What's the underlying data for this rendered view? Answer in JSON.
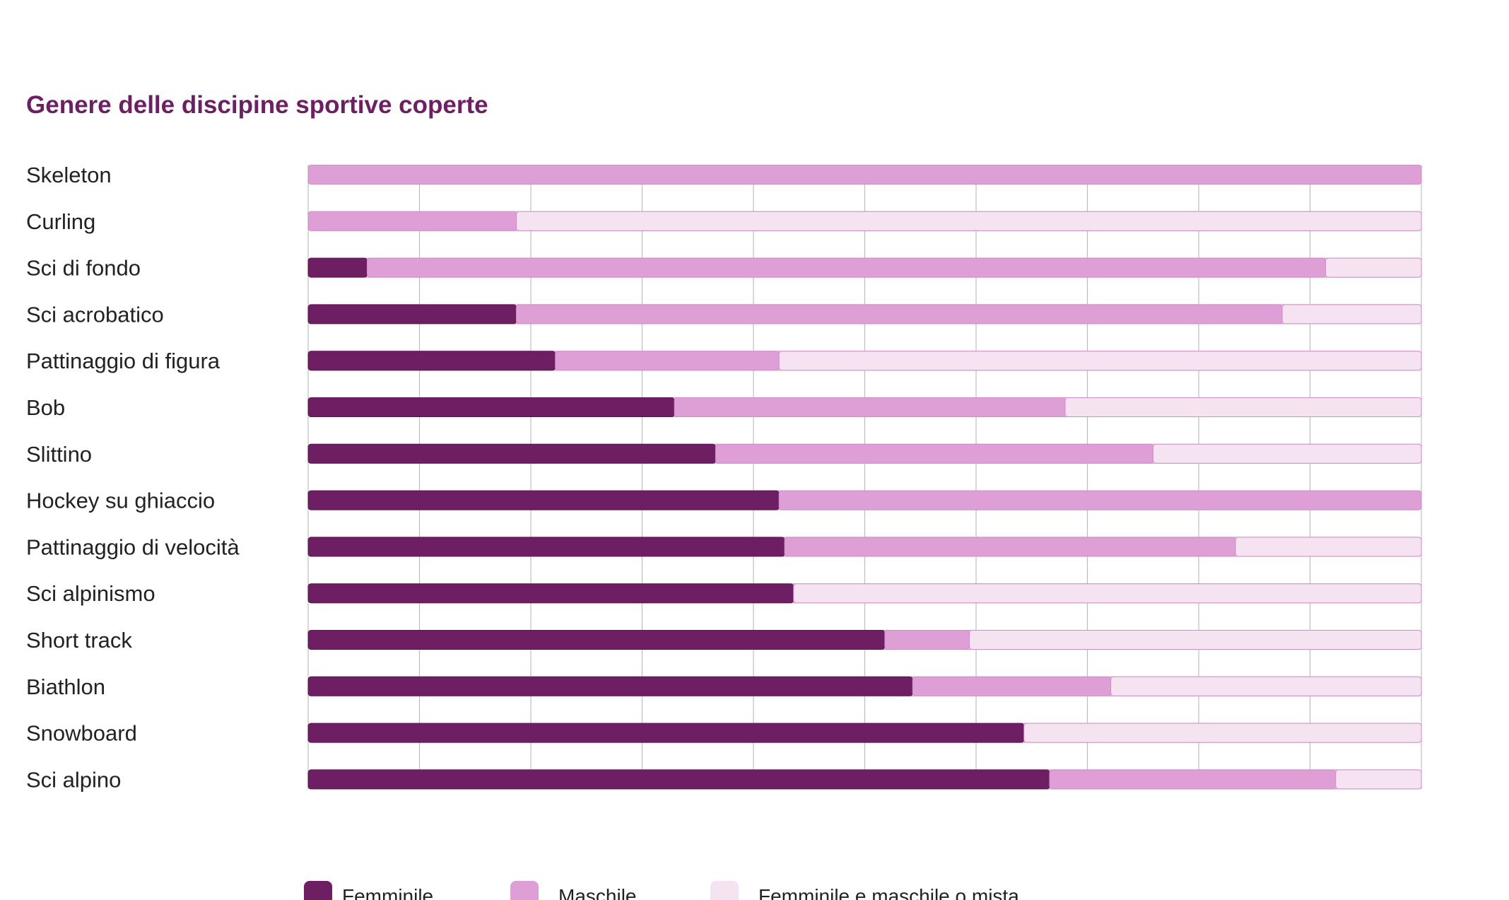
{
  "chart_data": {
    "type": "bar",
    "orientation": "horizontal",
    "stacked": true,
    "title": "Genere delle discipine sportive coperte",
    "xlabel": "",
    "ylabel": "",
    "xlim": [
      0,
      100
    ],
    "grid": true,
    "legend_position": "bottom",
    "categories": [
      "Skeleton",
      "Curling",
      "Sci di fondo",
      "Sci acrobatico",
      "Pattinaggio di figura",
      "Bob",
      "Slittino",
      "Hockey su ghiaccio",
      "Pattinaggio di velocità",
      "Sci alpinismo",
      "Short track",
      "Biathlon",
      "Snowboard",
      "Sci alpino"
    ],
    "series": [
      {
        "name": "Femminile",
        "color": "#6e1f63",
        "values": [
          0,
          0,
          5.3,
          18.7,
          22.2,
          32.9,
          36.6,
          42.3,
          42.8,
          43.6,
          51.8,
          54.3,
          64.3,
          66.6
        ]
      },
      {
        "name": "Maschile",
        "color": "#de9fd6",
        "values": [
          100,
          18.7,
          86.1,
          68.8,
          20.1,
          35.1,
          39.3,
          57.7,
          40.5,
          0,
          7.6,
          17.8,
          0,
          25.7
        ]
      },
      {
        "name": "Femminile e maschile o mista",
        "color": "#f5e3f2",
        "values": [
          0,
          81.3,
          8.6,
          12.5,
          57.7,
          32.0,
          24.1,
          0,
          16.7,
          56.4,
          40.6,
          27.9,
          35.7,
          7.7
        ]
      }
    ]
  }
}
